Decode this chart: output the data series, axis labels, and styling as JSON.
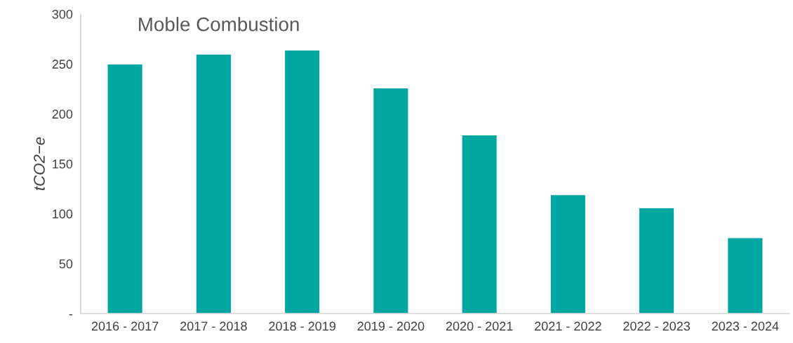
{
  "chart_data": {
    "type": "bar",
    "title": "Moble Combustion",
    "ylabel": "tCO2−e",
    "categories": [
      "2016 - 2017",
      "2017 - 2018",
      "2018 - 2019",
      "2019 - 2020",
      "2020 - 2021",
      "2021 - 2022",
      "2022 - 2023",
      "2023 - 2024"
    ],
    "values": [
      250,
      260,
      264,
      226,
      179,
      119,
      106,
      76
    ],
    "color": "#00a6a0",
    "ylim": [
      0,
      300
    ],
    "yticks": [
      {
        "value": 0,
        "label": "-"
      },
      50,
      100,
      150,
      200,
      250,
      300
    ],
    "grid": false,
    "legend": false
  }
}
